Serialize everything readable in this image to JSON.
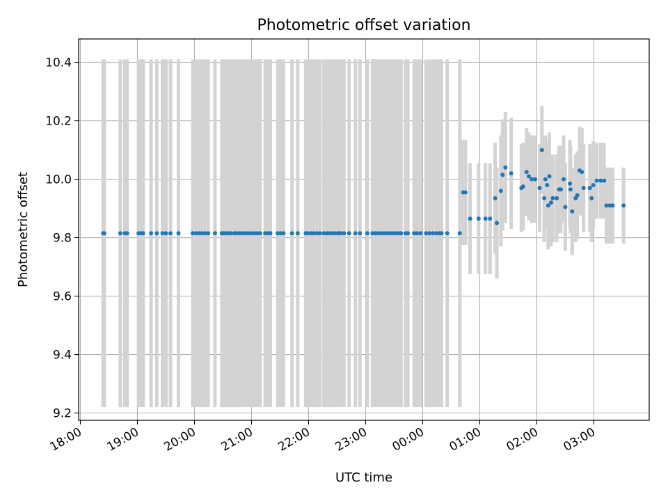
{
  "chart_data": {
    "type": "scatter",
    "title": "Photometric offset variation",
    "xlabel": "UTC time",
    "ylabel": "Photometric offset",
    "x_unit": "hours since 18:00 UTC",
    "xlim": [
      -0.03,
      9.97
    ],
    "ylim": [
      9.175,
      10.48
    ],
    "grid": true,
    "colors": {
      "point": "#1f77b4",
      "error_bar": "#d3d3d3",
      "grid": "#b0b0b0"
    },
    "x_ticks": [
      {
        "value": 0,
        "label": "18:00"
      },
      {
        "value": 1,
        "label": "19:00"
      },
      {
        "value": 2,
        "label": "20:00"
      },
      {
        "value": 3,
        "label": "21:00"
      },
      {
        "value": 4,
        "label": "22:00"
      },
      {
        "value": 5,
        "label": "23:00"
      },
      {
        "value": 6,
        "label": "00:00"
      },
      {
        "value": 7,
        "label": "01:00"
      },
      {
        "value": 8,
        "label": "02:00"
      },
      {
        "value": 9,
        "label": "03:00"
      }
    ],
    "y_ticks": [
      {
        "value": 9.2,
        "label": "9.2"
      },
      {
        "value": 9.4,
        "label": "9.4"
      },
      {
        "value": 9.6,
        "label": "9.6"
      },
      {
        "value": 9.8,
        "label": "9.8"
      },
      {
        "value": 10.0,
        "label": "10.0"
      },
      {
        "value": 10.2,
        "label": "10.2"
      },
      {
        "value": 10.4,
        "label": "10.4"
      }
    ],
    "points": [
      {
        "x": 0.4,
        "y": 9.815,
        "err": 0.595
      },
      {
        "x": 0.42,
        "y": 9.815,
        "err": 0.595
      },
      {
        "x": 0.7,
        "y": 9.815,
        "err": 0.595
      },
      {
        "x": 0.78,
        "y": 9.815,
        "err": 0.595
      },
      {
        "x": 0.82,
        "y": 9.815,
        "err": 0.595
      },
      {
        "x": 1.02,
        "y": 9.815,
        "err": 0.595
      },
      {
        "x": 1.06,
        "y": 9.815,
        "err": 0.595
      },
      {
        "x": 1.1,
        "y": 9.815,
        "err": 0.595
      },
      {
        "x": 1.24,
        "y": 9.815,
        "err": 0.595
      },
      {
        "x": 1.34,
        "y": 9.815,
        "err": 0.595
      },
      {
        "x": 1.44,
        "y": 9.815,
        "err": 0.595
      },
      {
        "x": 1.5,
        "y": 9.815,
        "err": 0.595
      },
      {
        "x": 1.58,
        "y": 9.815,
        "err": 0.595
      },
      {
        "x": 1.72,
        "y": 9.815,
        "err": 0.595
      },
      {
        "x": 1.97,
        "y": 9.815,
        "err": 0.595
      },
      {
        "x": 2.03,
        "y": 9.815,
        "err": 0.595
      },
      {
        "x": 2.08,
        "y": 9.815,
        "err": 0.595
      },
      {
        "x": 2.13,
        "y": 9.815,
        "err": 0.595
      },
      {
        "x": 2.18,
        "y": 9.815,
        "err": 0.595
      },
      {
        "x": 2.24,
        "y": 9.815,
        "err": 0.595
      },
      {
        "x": 2.36,
        "y": 9.815,
        "err": 0.595
      },
      {
        "x": 2.48,
        "y": 9.815,
        "err": 0.595
      },
      {
        "x": 2.51,
        "y": 9.815,
        "err": 0.595
      },
      {
        "x": 2.55,
        "y": 9.815,
        "err": 0.595
      },
      {
        "x": 2.6,
        "y": 9.815,
        "err": 0.595
      },
      {
        "x": 2.64,
        "y": 9.815,
        "err": 0.595
      },
      {
        "x": 2.7,
        "y": 9.815,
        "err": 0.595
      },
      {
        "x": 2.74,
        "y": 9.815,
        "err": 0.595
      },
      {
        "x": 2.79,
        "y": 9.815,
        "err": 0.595
      },
      {
        "x": 2.84,
        "y": 9.815,
        "err": 0.595
      },
      {
        "x": 2.89,
        "y": 9.815,
        "err": 0.595
      },
      {
        "x": 2.94,
        "y": 9.815,
        "err": 0.595
      },
      {
        "x": 3.0,
        "y": 9.815,
        "err": 0.595
      },
      {
        "x": 3.05,
        "y": 9.815,
        "err": 0.595
      },
      {
        "x": 3.1,
        "y": 9.815,
        "err": 0.595
      },
      {
        "x": 3.15,
        "y": 9.815,
        "err": 0.595
      },
      {
        "x": 3.24,
        "y": 9.815,
        "err": 0.595
      },
      {
        "x": 3.29,
        "y": 9.815,
        "err": 0.595
      },
      {
        "x": 3.33,
        "y": 9.815,
        "err": 0.595
      },
      {
        "x": 3.46,
        "y": 9.815,
        "err": 0.595
      },
      {
        "x": 3.51,
        "y": 9.815,
        "err": 0.595
      },
      {
        "x": 3.56,
        "y": 9.815,
        "err": 0.595
      },
      {
        "x": 3.71,
        "y": 9.815,
        "err": 0.595
      },
      {
        "x": 3.81,
        "y": 9.815,
        "err": 0.595
      },
      {
        "x": 3.95,
        "y": 9.815,
        "err": 0.595
      },
      {
        "x": 3.99,
        "y": 9.815,
        "err": 0.595
      },
      {
        "x": 4.04,
        "y": 9.815,
        "err": 0.595
      },
      {
        "x": 4.09,
        "y": 9.815,
        "err": 0.595
      },
      {
        "x": 4.15,
        "y": 9.815,
        "err": 0.595
      },
      {
        "x": 4.2,
        "y": 9.815,
        "err": 0.595
      },
      {
        "x": 4.27,
        "y": 9.815,
        "err": 0.595
      },
      {
        "x": 4.32,
        "y": 9.815,
        "err": 0.595
      },
      {
        "x": 4.37,
        "y": 9.815,
        "err": 0.595
      },
      {
        "x": 4.42,
        "y": 9.815,
        "err": 0.595
      },
      {
        "x": 4.47,
        "y": 9.815,
        "err": 0.595
      },
      {
        "x": 4.52,
        "y": 9.815,
        "err": 0.595
      },
      {
        "x": 4.56,
        "y": 9.815,
        "err": 0.595
      },
      {
        "x": 4.62,
        "y": 9.815,
        "err": 0.595
      },
      {
        "x": 4.71,
        "y": 9.815,
        "err": 0.595
      },
      {
        "x": 4.82,
        "y": 9.815,
        "err": 0.595
      },
      {
        "x": 4.9,
        "y": 9.815,
        "err": 0.595
      },
      {
        "x": 5.03,
        "y": 9.815,
        "err": 0.595
      },
      {
        "x": 5.12,
        "y": 9.815,
        "err": 0.595
      },
      {
        "x": 5.17,
        "y": 9.815,
        "err": 0.595
      },
      {
        "x": 5.22,
        "y": 9.815,
        "err": 0.595
      },
      {
        "x": 5.27,
        "y": 9.815,
        "err": 0.595
      },
      {
        "x": 5.32,
        "y": 9.815,
        "err": 0.595
      },
      {
        "x": 5.37,
        "y": 9.815,
        "err": 0.595
      },
      {
        "x": 5.42,
        "y": 9.815,
        "err": 0.595
      },
      {
        "x": 5.47,
        "y": 9.815,
        "err": 0.595
      },
      {
        "x": 5.52,
        "y": 9.815,
        "err": 0.595
      },
      {
        "x": 5.57,
        "y": 9.815,
        "err": 0.595
      },
      {
        "x": 5.62,
        "y": 9.815,
        "err": 0.595
      },
      {
        "x": 5.7,
        "y": 9.815,
        "err": 0.595
      },
      {
        "x": 5.74,
        "y": 9.815,
        "err": 0.595
      },
      {
        "x": 5.85,
        "y": 9.815,
        "err": 0.595
      },
      {
        "x": 5.9,
        "y": 9.815,
        "err": 0.595
      },
      {
        "x": 5.96,
        "y": 9.815,
        "err": 0.595
      },
      {
        "x": 6.06,
        "y": 9.815,
        "err": 0.595
      },
      {
        "x": 6.12,
        "y": 9.815,
        "err": 0.595
      },
      {
        "x": 6.18,
        "y": 9.815,
        "err": 0.595
      },
      {
        "x": 6.24,
        "y": 9.815,
        "err": 0.595
      },
      {
        "x": 6.29,
        "y": 9.815,
        "err": 0.595
      },
      {
        "x": 6.33,
        "y": 9.815,
        "err": 0.595
      },
      {
        "x": 6.43,
        "y": 9.815,
        "err": 0.595
      },
      {
        "x": 6.65,
        "y": 9.815,
        "err": 0.595
      },
      {
        "x": 6.71,
        "y": 9.955,
        "err": 0.18
      },
      {
        "x": 6.75,
        "y": 9.955,
        "err": 0.18
      },
      {
        "x": 6.83,
        "y": 9.865,
        "err": 0.19
      },
      {
        "x": 6.98,
        "y": 9.865,
        "err": 0.19
      },
      {
        "x": 7.1,
        "y": 9.865,
        "err": 0.19
      },
      {
        "x": 7.18,
        "y": 9.865,
        "err": 0.19
      },
      {
        "x": 7.27,
        "y": 9.935,
        "err": 0.19
      },
      {
        "x": 7.3,
        "y": 9.85,
        "err": 0.19
      },
      {
        "x": 7.37,
        "y": 9.96,
        "err": 0.19
      },
      {
        "x": 7.4,
        "y": 10.015,
        "err": 0.19
      },
      {
        "x": 7.45,
        "y": 10.04,
        "err": 0.19
      },
      {
        "x": 7.55,
        "y": 10.02,
        "err": 0.19
      },
      {
        "x": 7.73,
        "y": 9.97,
        "err": 0.15
      },
      {
        "x": 7.76,
        "y": 9.975,
        "err": 0.15
      },
      {
        "x": 7.82,
        "y": 10.025,
        "err": 0.15
      },
      {
        "x": 7.86,
        "y": 10.01,
        "err": 0.15
      },
      {
        "x": 7.91,
        "y": 10.0,
        "err": 0.15
      },
      {
        "x": 7.97,
        "y": 10.0,
        "err": 0.15
      },
      {
        "x": 8.05,
        "y": 9.97,
        "err": 0.15
      },
      {
        "x": 8.09,
        "y": 10.1,
        "err": 0.15
      },
      {
        "x": 8.13,
        "y": 9.935,
        "err": 0.15
      },
      {
        "x": 8.15,
        "y": 10.0,
        "err": 0.15
      },
      {
        "x": 8.18,
        "y": 9.98,
        "err": 0.15
      },
      {
        "x": 8.2,
        "y": 9.91,
        "err": 0.15
      },
      {
        "x": 8.22,
        "y": 10.01,
        "err": 0.15
      },
      {
        "x": 8.25,
        "y": 9.92,
        "err": 0.15
      },
      {
        "x": 8.28,
        "y": 9.935,
        "err": 0.15
      },
      {
        "x": 8.35,
        "y": 9.935,
        "err": 0.15
      },
      {
        "x": 8.39,
        "y": 9.965,
        "err": 0.15
      },
      {
        "x": 8.42,
        "y": 9.965,
        "err": 0.15
      },
      {
        "x": 8.47,
        "y": 10.0,
        "err": 0.15
      },
      {
        "x": 8.5,
        "y": 9.905,
        "err": 0.15
      },
      {
        "x": 8.58,
        "y": 9.985,
        "err": 0.15
      },
      {
        "x": 8.59,
        "y": 9.965,
        "err": 0.15
      },
      {
        "x": 8.62,
        "y": 9.89,
        "err": 0.15
      },
      {
        "x": 8.68,
        "y": 9.935,
        "err": 0.15
      },
      {
        "x": 8.71,
        "y": 9.945,
        "err": 0.15
      },
      {
        "x": 8.75,
        "y": 10.03,
        "err": 0.15
      },
      {
        "x": 8.79,
        "y": 10.025,
        "err": 0.15
      },
      {
        "x": 8.82,
        "y": 9.97,
        "err": 0.15
      },
      {
        "x": 8.93,
        "y": 9.97,
        "err": 0.15
      },
      {
        "x": 8.96,
        "y": 9.935,
        "err": 0.15
      },
      {
        "x": 8.99,
        "y": 9.98,
        "err": 0.15
      },
      {
        "x": 9.05,
        "y": 9.995,
        "err": 0.13
      },
      {
        "x": 9.12,
        "y": 9.995,
        "err": 0.13
      },
      {
        "x": 9.18,
        "y": 9.995,
        "err": 0.13
      },
      {
        "x": 9.22,
        "y": 9.91,
        "err": 0.13
      },
      {
        "x": 9.28,
        "y": 9.91,
        "err": 0.13
      },
      {
        "x": 9.33,
        "y": 9.91,
        "err": 0.13
      },
      {
        "x": 9.52,
        "y": 9.91,
        "err": 0.13
      }
    ]
  }
}
